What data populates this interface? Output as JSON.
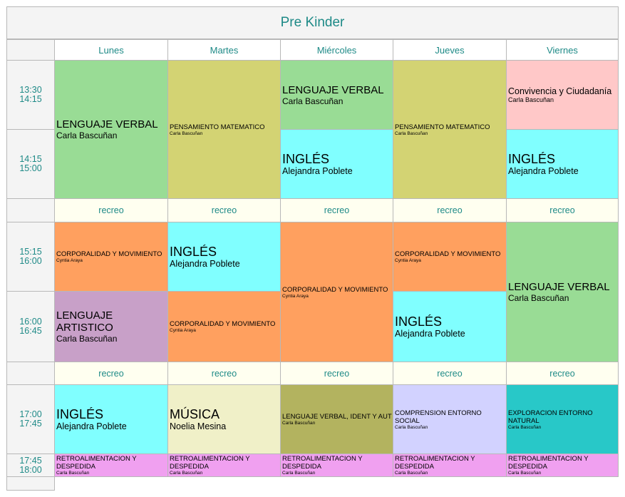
{
  "title": "Pre Kinder",
  "days": [
    "Lunes",
    "Martes",
    "Miércoles",
    "Jueves",
    "Viernes"
  ],
  "times": [
    {
      "start": "13:30",
      "end": "14:15"
    },
    {
      "start": "14:15",
      "end": "15:00"
    },
    {
      "start": "15:15",
      "end": "16:00"
    },
    {
      "start": "16:00",
      "end": "16:45"
    },
    {
      "start": "17:00",
      "end": "17:45"
    },
    {
      "start": "17:45",
      "end": "18:00"
    }
  ],
  "recreo_label": "recreo",
  "teachers": {
    "carla": "Carla Bascuñan",
    "alejandra": "Alejandra Poblete",
    "cyntia": "Cyntia Araya",
    "noelia": "Noelia Mesina"
  },
  "subjects": {
    "lenguaje_verbal": "LENGUAJE VERBAL",
    "pensamiento": "PENSAMIENTO MATEMATICO",
    "ingles": "INGLÉS",
    "convivencia": "Convivencia y Ciudadanía",
    "corporalidad": "CORPORALIDAD Y MOVIMIENTO",
    "lenguaje_artistico": "LENGUAJE ARTISTICO",
    "musica": "MÚSICA",
    "lenguaje_ident": "LENGUAJE VERBAL, IDENT Y AUT",
    "comprension": "COMPRENSION ENTORNO SOCIAL",
    "exploracion": "EXPLORACION ENTORNO NATURAL",
    "retro": "RETROALIMENTACION Y DESPEDIDA"
  },
  "colors": {
    "lenguaje_verbal": "#99dc95",
    "pensamiento": "#d3d373",
    "ingles": "#80ffff",
    "convivencia": "#ffc8c8",
    "corporalidad": "#ffa05f",
    "lenguaje_artistico": "#c8a0c8",
    "musica": "#f0f0c8",
    "lenguaje_ident": "#b3b35f",
    "comprension": "#d2d2ff",
    "exploracion": "#28c8c8",
    "retro": "#f0a0f0",
    "recreo": "#fffff0",
    "header_text": "#1e8a87"
  }
}
